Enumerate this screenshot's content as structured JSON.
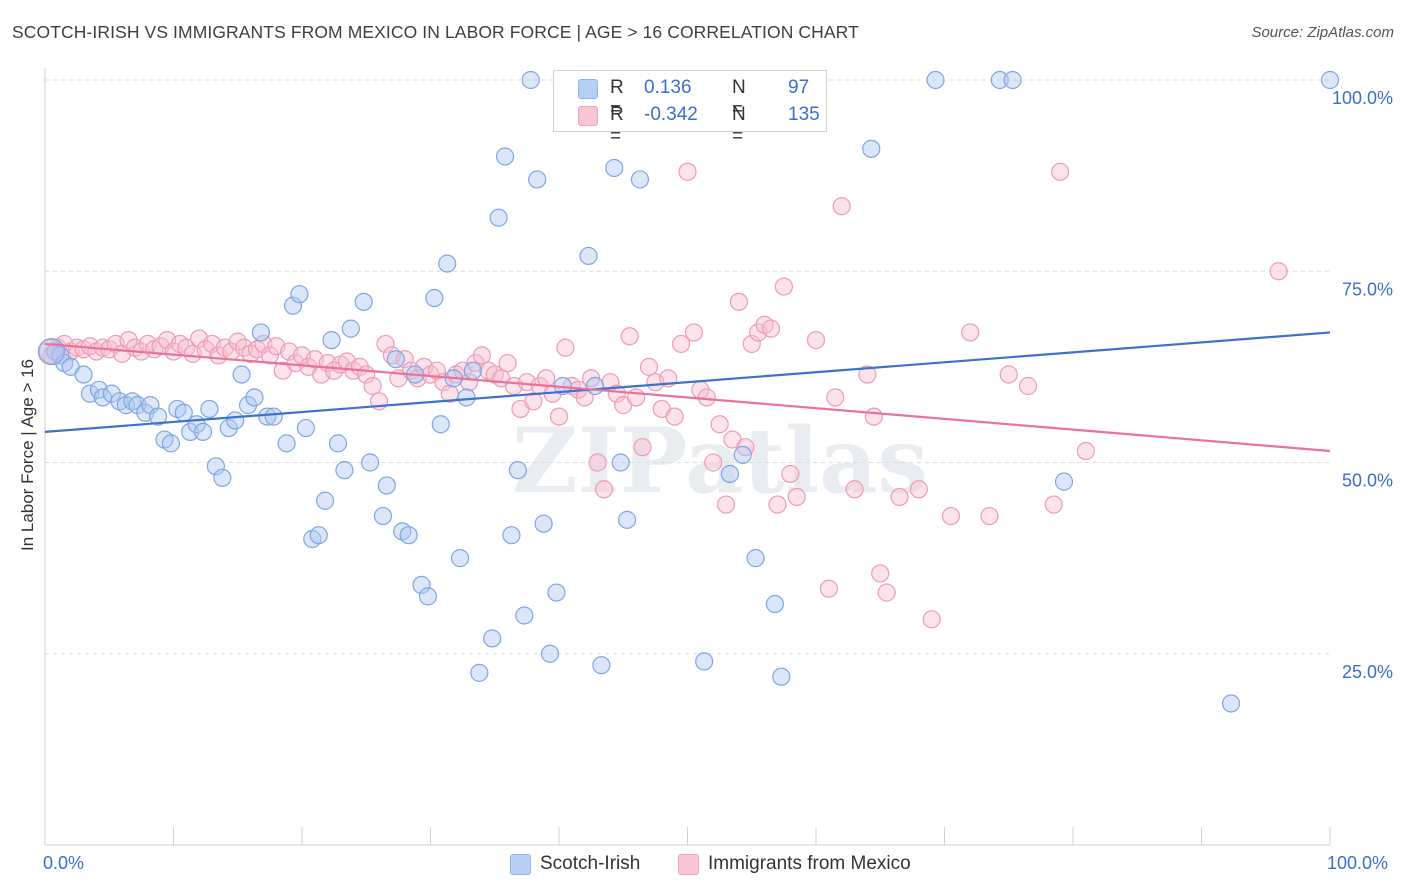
{
  "title": "SCOTCH-IRISH VS IMMIGRANTS FROM MEXICO IN LABOR FORCE | AGE > 16 CORRELATION CHART",
  "source": "Source: ZipAtlas.com",
  "watermark": "ZIPatlas",
  "legend": {
    "r_label": "R =",
    "n_label": "N =",
    "series": [
      {
        "name": "Scotch-Irish",
        "r": "0.136",
        "n": "97",
        "color": "#8fb4ea",
        "fill": "#b7cff5"
      },
      {
        "name": "Immigrants from Mexico",
        "r": "-0.342",
        "n": "135",
        "color": "#f0a3bb",
        "fill": "#f8c6d5"
      }
    ]
  },
  "chart_data": {
    "type": "scatter",
    "ylabel": "In Labor Force | Age > 16",
    "xlim": [
      0,
      100
    ],
    "ylim": [
      0,
      100
    ],
    "x_tick_labels": [
      "0.0%",
      "100.0%"
    ],
    "y_ticks": [
      25,
      50,
      75,
      100
    ],
    "y_tick_labels": [
      "25.0%",
      "50.0%",
      "75.0%",
      "100.0%"
    ],
    "grid": true,
    "colors": {
      "blue": "#3a72cc",
      "pink": "#e8729a"
    },
    "series": [
      {
        "name": "Scotch-Irish",
        "trend": [
          [
            0,
            54.0
          ],
          [
            100,
            67.0
          ]
        ],
        "points": [
          [
            0.8,
            64.5
          ],
          [
            1.2,
            64.0
          ],
          [
            1.5,
            63.0
          ],
          [
            2,
            62.5
          ],
          [
            3,
            61.5
          ],
          [
            3.5,
            59
          ],
          [
            4.2,
            59.5
          ],
          [
            4.5,
            58.5
          ],
          [
            5.2,
            59
          ],
          [
            5.8,
            58
          ],
          [
            6.3,
            57.5
          ],
          [
            6.8,
            58
          ],
          [
            7.2,
            57.5
          ],
          [
            7.8,
            56.5
          ],
          [
            8.2,
            57.5
          ],
          [
            8.8,
            56
          ],
          [
            9.3,
            53
          ],
          [
            9.8,
            52.5
          ],
          [
            10.3,
            57
          ],
          [
            10.8,
            56.5
          ],
          [
            11.3,
            54
          ],
          [
            11.8,
            55
          ],
          [
            12.3,
            54
          ],
          [
            12.8,
            57
          ],
          [
            13.3,
            49.5
          ],
          [
            13.8,
            48
          ],
          [
            14.3,
            54.5
          ],
          [
            14.8,
            55.5
          ],
          [
            15.3,
            61.5
          ],
          [
            15.8,
            57.5
          ],
          [
            16.3,
            58.5
          ],
          [
            16.8,
            67
          ],
          [
            17.3,
            56
          ],
          [
            17.8,
            56
          ],
          [
            18.8,
            52.5
          ],
          [
            19.3,
            70.5
          ],
          [
            19.8,
            72
          ],
          [
            20.3,
            54.5
          ],
          [
            20.8,
            40
          ],
          [
            21.3,
            40.5
          ],
          [
            21.8,
            45
          ],
          [
            22.3,
            66
          ],
          [
            22.8,
            52.5
          ],
          [
            23.3,
            49
          ],
          [
            23.8,
            67.5
          ],
          [
            24.8,
            71
          ],
          [
            25.3,
            50
          ],
          [
            26.3,
            43
          ],
          [
            26.6,
            47
          ],
          [
            27.3,
            63.5
          ],
          [
            27.8,
            41
          ],
          [
            28.3,
            40.5
          ],
          [
            28.8,
            61.5
          ],
          [
            29.3,
            34
          ],
          [
            29.8,
            32.5
          ],
          [
            30.3,
            71.5
          ],
          [
            30.8,
            55
          ],
          [
            31.3,
            76
          ],
          [
            31.8,
            61
          ],
          [
            32.3,
            37.5
          ],
          [
            32.8,
            58.5
          ],
          [
            33.3,
            62
          ],
          [
            33.8,
            22.5
          ],
          [
            34.8,
            27
          ],
          [
            35.3,
            82
          ],
          [
            35.8,
            90
          ],
          [
            36.3,
            40.5
          ],
          [
            36.8,
            49
          ],
          [
            37.3,
            30
          ],
          [
            37.8,
            100
          ],
          [
            38.3,
            87
          ],
          [
            38.8,
            42
          ],
          [
            39.3,
            25
          ],
          [
            39.8,
            33
          ],
          [
            40.3,
            60
          ],
          [
            41.3,
            100
          ],
          [
            42.3,
            77
          ],
          [
            42.8,
            60
          ],
          [
            43.3,
            23.5
          ],
          [
            44.3,
            88.5
          ],
          [
            44.8,
            50
          ],
          [
            45.3,
            42.5
          ],
          [
            46.3,
            87
          ],
          [
            48.3,
            100
          ],
          [
            50.3,
            100
          ],
          [
            51.3,
            24
          ],
          [
            53.3,
            48.5
          ],
          [
            54.3,
            51
          ],
          [
            55.3,
            37.5
          ],
          [
            56.8,
            31.5
          ],
          [
            57.3,
            22
          ],
          [
            64.3,
            91
          ],
          [
            69.3,
            100
          ],
          [
            74.3,
            100
          ],
          [
            75.3,
            100
          ],
          [
            79.3,
            47.5
          ],
          [
            92.3,
            18.5
          ],
          [
            100,
            100
          ]
        ]
      },
      {
        "name": "Immigrants from Mexico",
        "trend": [
          [
            0,
            65.5
          ],
          [
            100,
            51.5
          ]
        ],
        "points": [
          [
            0.5,
            64
          ],
          [
            1,
            65
          ],
          [
            1.5,
            65.5
          ],
          [
            2,
            64.5
          ],
          [
            2.5,
            65
          ],
          [
            3,
            64.8
          ],
          [
            3.5,
            65.2
          ],
          [
            4,
            64.5
          ],
          [
            4.5,
            65
          ],
          [
            5,
            64.8
          ],
          [
            5.5,
            65.5
          ],
          [
            6,
            64.2
          ],
          [
            6.5,
            66
          ],
          [
            7,
            65
          ],
          [
            7.5,
            64.5
          ],
          [
            8,
            65.5
          ],
          [
            8.5,
            64.8
          ],
          [
            9,
            65.2
          ],
          [
            9.5,
            66
          ],
          [
            10,
            64.5
          ],
          [
            10.5,
            65.5
          ],
          [
            11,
            65
          ],
          [
            11.5,
            64.2
          ],
          [
            12,
            66.2
          ],
          [
            12.5,
            64.8
          ],
          [
            13,
            65.5
          ],
          [
            13.5,
            64
          ],
          [
            14,
            65
          ],
          [
            14.5,
            64.5
          ],
          [
            15,
            65.8
          ],
          [
            15.5,
            65
          ],
          [
            16,
            64.2
          ],
          [
            16.5,
            64.8
          ],
          [
            17,
            65.5
          ],
          [
            17.5,
            64
          ],
          [
            18,
            65.2
          ],
          [
            18.5,
            62
          ],
          [
            19,
            64.5
          ],
          [
            19.5,
            63
          ],
          [
            20,
            64
          ],
          [
            20.5,
            62.5
          ],
          [
            21,
            63.5
          ],
          [
            21.5,
            61.5
          ],
          [
            22,
            63
          ],
          [
            22.5,
            62
          ],
          [
            23,
            62.8
          ],
          [
            23.5,
            63.2
          ],
          [
            24,
            62
          ],
          [
            24.5,
            62.5
          ],
          [
            25,
            61.5
          ],
          [
            25.5,
            60
          ],
          [
            26,
            58
          ],
          [
            26.5,
            65.5
          ],
          [
            27,
            64
          ],
          [
            27.5,
            61
          ],
          [
            28,
            63.5
          ],
          [
            28.5,
            62
          ],
          [
            29,
            61
          ],
          [
            29.5,
            62.5
          ],
          [
            30,
            61.5
          ],
          [
            30.5,
            62
          ],
          [
            31,
            60.5
          ],
          [
            31.5,
            59
          ],
          [
            32,
            61.5
          ],
          [
            32.5,
            62
          ],
          [
            33,
            60.5
          ],
          [
            33.5,
            63
          ],
          [
            34,
            64
          ],
          [
            34.5,
            62
          ],
          [
            35,
            61.5
          ],
          [
            35.5,
            61
          ],
          [
            36,
            63
          ],
          [
            36.5,
            60
          ],
          [
            37,
            57
          ],
          [
            37.5,
            60.5
          ],
          [
            38,
            58
          ],
          [
            38.5,
            60
          ],
          [
            39,
            61
          ],
          [
            39.5,
            59
          ],
          [
            40,
            56
          ],
          [
            40.5,
            65
          ],
          [
            41,
            60
          ],
          [
            41.5,
            59.5
          ],
          [
            42,
            58.5
          ],
          [
            42.5,
            61
          ],
          [
            43,
            50
          ],
          [
            43.5,
            46.5
          ],
          [
            44,
            60.5
          ],
          [
            44.5,
            59
          ],
          [
            45,
            57.5
          ],
          [
            45.5,
            66.5
          ],
          [
            46,
            58.5
          ],
          [
            46.5,
            52
          ],
          [
            47,
            62.5
          ],
          [
            47.5,
            60.5
          ],
          [
            48,
            57
          ],
          [
            48.5,
            61
          ],
          [
            49,
            56
          ],
          [
            49.5,
            65.5
          ],
          [
            50,
            88
          ],
          [
            50.5,
            67
          ],
          [
            51,
            59.5
          ],
          [
            51.5,
            58.5
          ],
          [
            52,
            50
          ],
          [
            52.5,
            55
          ],
          [
            53,
            44.5
          ],
          [
            53.5,
            53
          ],
          [
            54,
            71
          ],
          [
            54.5,
            52
          ],
          [
            55,
            65.5
          ],
          [
            55.5,
            67
          ],
          [
            56,
            68
          ],
          [
            56.5,
            67.5
          ],
          [
            57,
            44.5
          ],
          [
            57.5,
            73
          ],
          [
            58,
            48.5
          ],
          [
            58.5,
            45.5
          ],
          [
            60,
            66
          ],
          [
            61,
            33.5
          ],
          [
            61.5,
            58.5
          ],
          [
            62,
            83.5
          ],
          [
            63,
            46.5
          ],
          [
            64,
            61.5
          ],
          [
            64.5,
            56
          ],
          [
            65,
            35.5
          ],
          [
            65.5,
            33
          ],
          [
            66.5,
            45.5
          ],
          [
            68,
            46.5
          ],
          [
            69,
            29.5
          ],
          [
            70.5,
            43
          ],
          [
            72,
            67
          ],
          [
            73.5,
            43
          ],
          [
            75,
            61.5
          ],
          [
            76.5,
            60
          ],
          [
            78.5,
            44.5
          ],
          [
            79,
            88
          ],
          [
            81,
            51.5
          ],
          [
            96,
            75
          ]
        ]
      }
    ]
  }
}
